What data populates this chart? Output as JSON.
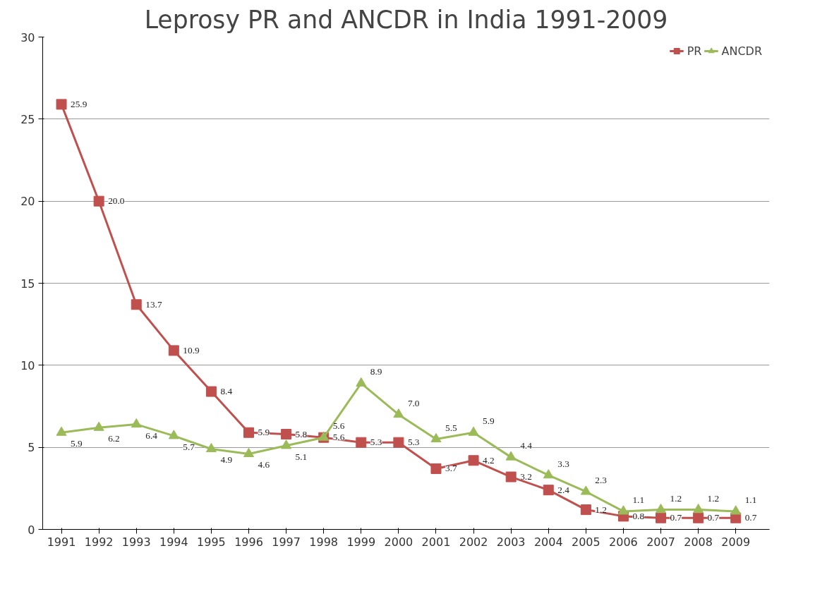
{
  "chart_data": {
    "type": "line",
    "title": "Leprosy PR and ANCDR in India 1991-2009",
    "categories": [
      "1991",
      "1992",
      "1993",
      "1994",
      "1995",
      "1996",
      "1997",
      "1998",
      "1999",
      "2000",
      "2001",
      "2002",
      "2003",
      "2004",
      "2005",
      "2006",
      "2007",
      "2008",
      "2009"
    ],
    "series": [
      {
        "name": "PR",
        "color": "#c0504d",
        "marker": "square",
        "values": [
          25.9,
          20.0,
          13.7,
          10.9,
          8.4,
          5.9,
          5.8,
          5.6,
          5.3,
          5.3,
          3.7,
          4.2,
          3.2,
          2.4,
          1.2,
          0.8,
          0.7,
          0.7,
          0.7
        ],
        "value_labels": [
          "25.9",
          "20.0",
          "13.7",
          "10.9",
          "8.4",
          "5.9",
          "5.8",
          "5.6",
          "5.3",
          "5.3",
          "3.7",
          "4.2",
          "3.2",
          "2.4",
          "1.2",
          "0.8",
          "0.7",
          "0.7",
          "0.7"
        ]
      },
      {
        "name": "ANCDR",
        "color": "#9bbb59",
        "marker": "triangle",
        "values": [
          5.9,
          6.2,
          6.4,
          5.7,
          4.9,
          4.6,
          5.1,
          5.6,
          8.9,
          7.0,
          5.5,
          5.9,
          4.4,
          3.3,
          2.3,
          1.1,
          1.2,
          1.2,
          1.1
        ],
        "value_labels": [
          "5.9",
          "6.2",
          "6.4",
          "5.7",
          "4.9",
          "4.6",
          "5.1",
          "5.6",
          "8.9",
          "7.0",
          "5.5",
          "5.9",
          "4.4",
          "3.3",
          "2.3",
          "1.1",
          "1.2",
          "1.2",
          "1.1"
        ]
      }
    ],
    "ylim": [
      0,
      30
    ],
    "yticks": [
      0,
      5,
      10,
      15,
      20,
      25,
      30
    ],
    "grid": "y",
    "legend": "top right",
    "line_style": "solid"
  }
}
